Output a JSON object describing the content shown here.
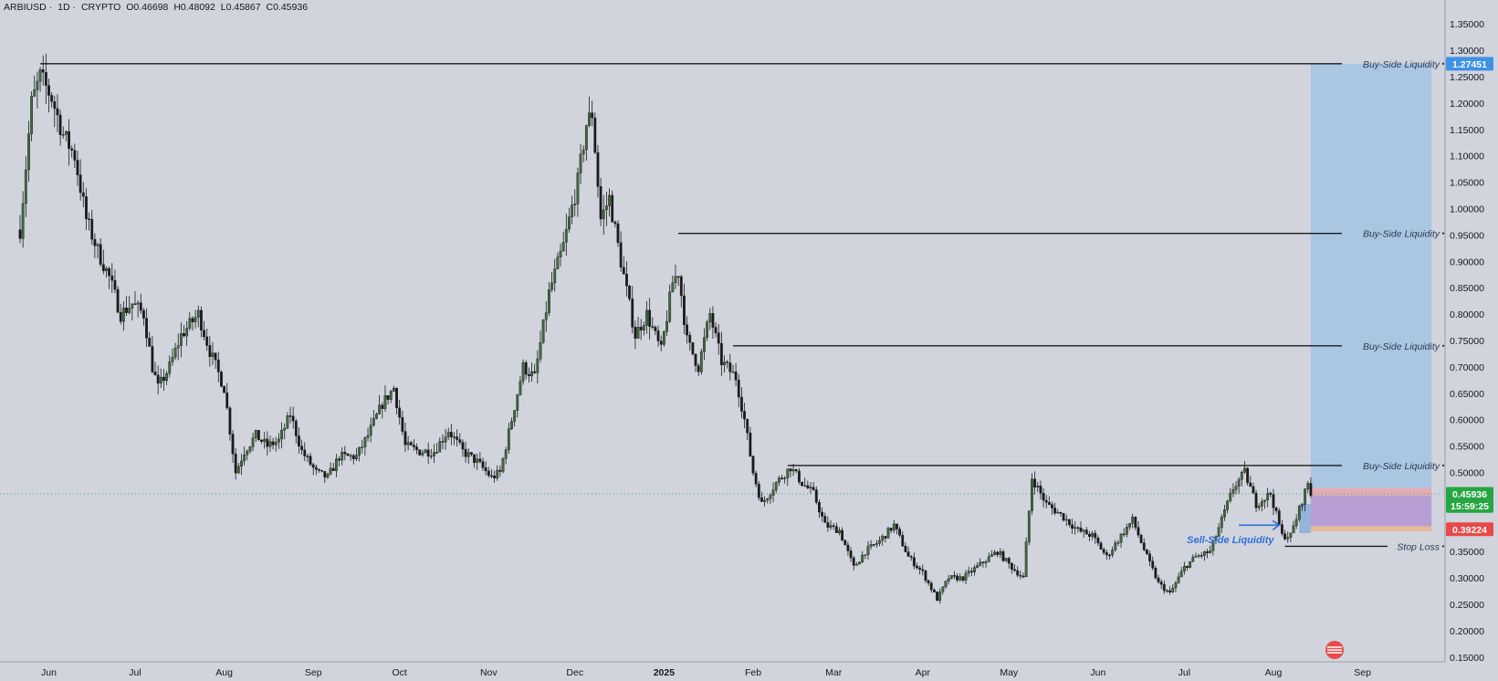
{
  "header": {
    "symbol": "ARBIUSD",
    "interval": "1D",
    "exchange": "CRYPTO",
    "open": "O0.46698",
    "high": "H0.48092",
    "low": "L0.45867",
    "close": "C0.45936"
  },
  "colors": {
    "background": "#d1d4dc",
    "candle_up": "#3f6b3f",
    "candle_down": "#1b1b1b",
    "target_zone": "#a9c6e3",
    "stop_zone": "#e8b896",
    "entry_zone": "#b79fd6",
    "sell_side_label": "#2f6fd6",
    "price_badge": "#26a641",
    "target_badge": "#3d91e6",
    "stop_badge": "#e94848"
  },
  "chart_data": {
    "type": "candlestick",
    "y_axis": {
      "range": [
        0.15,
        1.4
      ],
      "ticks": [
        "1.35000",
        "1.30000",
        "1.25000",
        "1.20000",
        "1.15000",
        "1.10000",
        "1.05000",
        "1.00000",
        "0.95000",
        "0.90000",
        "0.85000",
        "0.80000",
        "0.75000",
        "0.70000",
        "0.65000",
        "0.60000",
        "0.55000",
        "0.50000",
        "0.45000",
        "0.40000",
        "0.35000",
        "0.30000",
        "0.25000",
        "0.20000",
        "0.15000"
      ]
    },
    "x_axis": {
      "range": [
        "2024-05-22",
        "2025-09-25"
      ],
      "ticks": [
        {
          "label": "Jun",
          "date": "2024-06-01",
          "bold": false
        },
        {
          "label": "Jul",
          "date": "2024-07-01",
          "bold": false
        },
        {
          "label": "Aug",
          "date": "2024-08-01",
          "bold": false
        },
        {
          "label": "Sep",
          "date": "2024-09-01",
          "bold": false
        },
        {
          "label": "Oct",
          "date": "2024-10-01",
          "bold": false
        },
        {
          "label": "Nov",
          "date": "2024-11-01",
          "bold": false
        },
        {
          "label": "Dec",
          "date": "2024-12-01",
          "bold": false
        },
        {
          "label": "2025",
          "date": "2025-01-01",
          "bold": true
        },
        {
          "label": "Feb",
          "date": "2025-02-01",
          "bold": false
        },
        {
          "label": "Mar",
          "date": "2025-03-01",
          "bold": false
        },
        {
          "label": "Apr",
          "date": "2025-04-01",
          "bold": false
        },
        {
          "label": "May",
          "date": "2025-05-01",
          "bold": false
        },
        {
          "label": "Jun",
          "date": "2025-06-01",
          "bold": false
        },
        {
          "label": "Jul",
          "date": "2025-07-01",
          "bold": false
        },
        {
          "label": "Aug",
          "date": "2025-08-01",
          "bold": false
        },
        {
          "label": "Sep",
          "date": "2025-09-01",
          "bold": false
        }
      ]
    },
    "price_path": [
      [
        "2024-05-22",
        0.96
      ],
      [
        "2024-05-26",
        1.2
      ],
      [
        "2024-05-29",
        1.25
      ],
      [
        "2024-06-02",
        1.21
      ],
      [
        "2024-06-06",
        1.14
      ],
      [
        "2024-06-10",
        1.1
      ],
      [
        "2024-06-14",
        0.98
      ],
      [
        "2024-06-18",
        0.92
      ],
      [
        "2024-06-22",
        0.87
      ],
      [
        "2024-06-26",
        0.8
      ],
      [
        "2024-06-30",
        0.82
      ],
      [
        "2024-07-04",
        0.8
      ],
      [
        "2024-07-07",
        0.7
      ],
      [
        "2024-07-09",
        0.66
      ],
      [
        "2024-07-13",
        0.7
      ],
      [
        "2024-07-17",
        0.76
      ],
      [
        "2024-07-23",
        0.8
      ],
      [
        "2024-07-27",
        0.73
      ],
      [
        "2024-08-01",
        0.66
      ],
      [
        "2024-08-05",
        0.5
      ],
      [
        "2024-08-08",
        0.54
      ],
      [
        "2024-08-12",
        0.57
      ],
      [
        "2024-08-16",
        0.55
      ],
      [
        "2024-08-20",
        0.56
      ],
      [
        "2024-08-24",
        0.61
      ],
      [
        "2024-08-28",
        0.54
      ],
      [
        "2024-09-02",
        0.5
      ],
      [
        "2024-09-06",
        0.49
      ],
      [
        "2024-09-10",
        0.53
      ],
      [
        "2024-09-16",
        0.53
      ],
      [
        "2024-09-20",
        0.57
      ],
      [
        "2024-09-25",
        0.63
      ],
      [
        "2024-09-29",
        0.66
      ],
      [
        "2024-10-03",
        0.55
      ],
      [
        "2024-10-08",
        0.54
      ],
      [
        "2024-10-13",
        0.54
      ],
      [
        "2024-10-18",
        0.58
      ],
      [
        "2024-10-23",
        0.54
      ],
      [
        "2024-10-28",
        0.52
      ],
      [
        "2024-11-02",
        0.49
      ],
      [
        "2024-11-05",
        0.5
      ],
      [
        "2024-11-09",
        0.6
      ],
      [
        "2024-11-13",
        0.7
      ],
      [
        "2024-11-17",
        0.68
      ],
      [
        "2024-11-22",
        0.84
      ],
      [
        "2024-11-27",
        0.93
      ],
      [
        "2024-12-02",
        1.05
      ],
      [
        "2024-12-05",
        1.16
      ],
      [
        "2024-12-07",
        1.18
      ],
      [
        "2024-12-10",
        0.98
      ],
      [
        "2024-12-13",
        1.02
      ],
      [
        "2024-12-17",
        0.9
      ],
      [
        "2024-12-22",
        0.76
      ],
      [
        "2024-12-26",
        0.8
      ],
      [
        "2024-12-31",
        0.73
      ],
      [
        "2025-01-04",
        0.86
      ],
      [
        "2025-01-06",
        0.88
      ],
      [
        "2025-01-09",
        0.75
      ],
      [
        "2025-01-13",
        0.7
      ],
      [
        "2025-01-17",
        0.8
      ],
      [
        "2025-01-21",
        0.71
      ],
      [
        "2025-01-26",
        0.68
      ],
      [
        "2025-01-29",
        0.6
      ],
      [
        "2025-02-01",
        0.5
      ],
      [
        "2025-02-04",
        0.44
      ],
      [
        "2025-02-09",
        0.48
      ],
      [
        "2025-02-14",
        0.51
      ],
      [
        "2025-02-18",
        0.48
      ],
      [
        "2025-02-22",
        0.46
      ],
      [
        "2025-02-26",
        0.4
      ],
      [
        "2025-03-03",
        0.39
      ],
      [
        "2025-03-08",
        0.32
      ],
      [
        "2025-03-12",
        0.35
      ],
      [
        "2025-03-17",
        0.37
      ],
      [
        "2025-03-22",
        0.4
      ],
      [
        "2025-03-27",
        0.34
      ],
      [
        "2025-04-01",
        0.31
      ],
      [
        "2025-04-06",
        0.26
      ],
      [
        "2025-04-10",
        0.3
      ],
      [
        "2025-04-15",
        0.3
      ],
      [
        "2025-04-22",
        0.33
      ],
      [
        "2025-04-27",
        0.35
      ],
      [
        "2025-05-02",
        0.32
      ],
      [
        "2025-05-06",
        0.3
      ],
      [
        "2025-05-09",
        0.49
      ],
      [
        "2025-05-14",
        0.44
      ],
      [
        "2025-05-19",
        0.42
      ],
      [
        "2025-05-25",
        0.39
      ],
      [
        "2025-05-30",
        0.38
      ],
      [
        "2025-06-04",
        0.34
      ],
      [
        "2025-06-09",
        0.38
      ],
      [
        "2025-06-13",
        0.41
      ],
      [
        "2025-06-18",
        0.34
      ],
      [
        "2025-06-22",
        0.29
      ],
      [
        "2025-06-26",
        0.27
      ],
      [
        "2025-07-01",
        0.32
      ],
      [
        "2025-07-05",
        0.34
      ],
      [
        "2025-07-10",
        0.35
      ],
      [
        "2025-07-14",
        0.41
      ],
      [
        "2025-07-18",
        0.47
      ],
      [
        "2025-07-22",
        0.5
      ],
      [
        "2025-07-26",
        0.44
      ],
      [
        "2025-07-31",
        0.46
      ],
      [
        "2025-08-04",
        0.38
      ],
      [
        "2025-08-07",
        0.38
      ],
      [
        "2025-08-10",
        0.43
      ],
      [
        "2025-08-13",
        0.48
      ],
      [
        "2025-08-14",
        0.45936
      ]
    ],
    "current_price_line": 0.45936,
    "liquidity_levels": [
      {
        "label": "Buy-Side Liquidity",
        "price": 1.27451,
        "start": "2024-05-29"
      },
      {
        "label": "Buy-Side Liquidity",
        "price": 0.953,
        "start": "2025-01-06"
      },
      {
        "label": "Buy-Side Liquidity",
        "price": 0.74,
        "start": "2025-01-25"
      },
      {
        "label": "Buy-Side Liquidity",
        "price": 0.513,
        "start": "2025-02-13"
      }
    ],
    "stop_loss": {
      "label": "Stop Loss",
      "price": 0.36,
      "start": "2025-08-05"
    },
    "sell_side": {
      "label": "Sell-Side Liquidity",
      "price": 0.373,
      "arrow_start": "2025-07-20",
      "arrow_end": "2025-08-03"
    },
    "position": {
      "start": "2025-08-14",
      "end": "2025-09-25",
      "target": 1.27451,
      "entry_top": 0.47,
      "entry": 0.456,
      "entry_low": 0.398,
      "stop": 0.3885
    },
    "badges": [
      {
        "text": "1.27451",
        "price": 1.27451,
        "kind": "target"
      },
      {
        "text": "0.45936",
        "price": 0.45936,
        "kind": "current"
      },
      {
        "text": "15:59:25",
        "price": 0.4365,
        "kind": "countdown"
      },
      {
        "text": "0.39224",
        "price": 0.39224,
        "kind": "stop"
      }
    ]
  }
}
